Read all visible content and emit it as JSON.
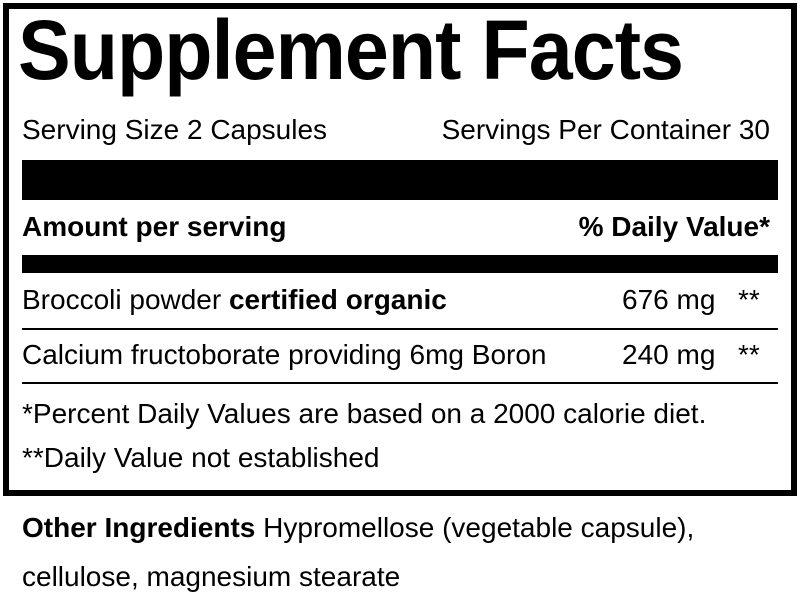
{
  "title": "Supplement Facts",
  "serving_size": "Serving Size 2 Capsules",
  "servings_per_container": "Servings Per Container 30",
  "header": {
    "amount": "Amount per serving",
    "daily_value": "% Daily Value*"
  },
  "rows": [
    {
      "name": "Broccoli powder",
      "qualifier": "certified organic",
      "amount": "676 mg",
      "dv": "**"
    },
    {
      "name": "Calcium fructoborate providing 6mg Boron",
      "qualifier": "",
      "amount": "240 mg",
      "dv": "**"
    }
  ],
  "footnotes": [
    "*Percent Daily Values are based on a 2000 calorie diet.",
    "**Daily Value not established"
  ],
  "other_ingredients": {
    "label": "Other Ingredients",
    "line1": "Hypromellose (vegetable capsule),",
    "line2": "cellulose, magnesium stearate"
  }
}
